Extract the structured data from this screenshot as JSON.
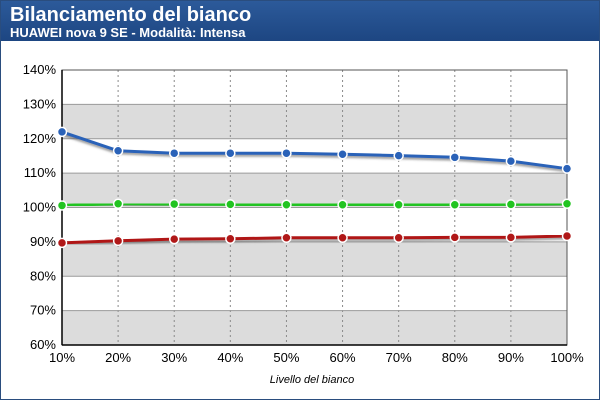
{
  "header": {
    "title": "Bilanciamento del bianco",
    "subtitle": "HUAWEI nova 9 SE - Modalità: Intensa",
    "background": "#24508e"
  },
  "chart_data": {
    "type": "line",
    "title": "Bilanciamento del bianco",
    "subtitle": "HUAWEI nova 9 SE - Modalità: Intensa",
    "xlabel": "Livello del bianco",
    "ylabel": "",
    "x": [
      10,
      20,
      30,
      40,
      50,
      60,
      70,
      80,
      90,
      100
    ],
    "x_tick_labels": [
      "10%",
      "20%",
      "30%",
      "40%",
      "50%",
      "60%",
      "70%",
      "80%",
      "90%",
      "100%"
    ],
    "y_tick_labels": [
      "60%",
      "70%",
      "80%",
      "90%",
      "100%",
      "110%",
      "120%",
      "130%",
      "140%"
    ],
    "ylim": [
      60,
      140
    ],
    "grid": "horizontal bands and dotted vertical lines",
    "series": [
      {
        "color": "#2a62b8",
        "values": [
          122,
          116.5,
          115.8,
          115.8,
          115.8,
          115.5,
          115.1,
          114.6,
          113.5,
          111.3
        ]
      },
      {
        "color": "#22c421",
        "values": [
          100.6,
          101.1,
          101.0,
          100.9,
          100.8,
          100.8,
          100.8,
          100.8,
          100.9,
          101.1
        ]
      },
      {
        "color": "#b01818",
        "values": [
          89.7,
          90.3,
          90.8,
          90.9,
          91.2,
          91.2,
          91.2,
          91.3,
          91.3,
          91.7
        ]
      }
    ]
  }
}
